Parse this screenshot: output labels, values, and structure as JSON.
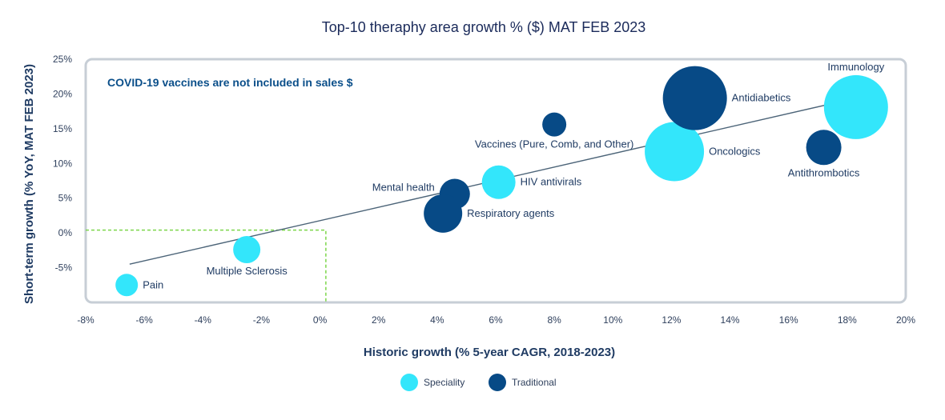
{
  "colors": {
    "speciality": "#33e6fb",
    "traditional": "#074a86",
    "frame": "#c7ced6",
    "trendline": "#4c6478",
    "highlight_box": "#7cd64b"
  },
  "chart_data": {
    "type": "scatter",
    "title": "Top-10 theraphy area growth % ($) MAT FEB 2023",
    "xlabel": "Historic growth (% 5-year CAGR, 2018-2023)",
    "ylabel": "Short-term growth (% YoY, MAT FEB 2023)",
    "annotation": "COVID-19 vaccines are not included in sales $",
    "xlim": [
      -8,
      20
    ],
    "ylim": [
      -10,
      25
    ],
    "x_ticks": [
      -8,
      -6,
      -4,
      -2,
      0,
      2,
      4,
      6,
      8,
      10,
      12,
      14,
      16,
      18,
      20
    ],
    "x_tick_labels": [
      "-8%",
      "-6%",
      "-4%",
      "-2%",
      "0%",
      "2%",
      "4%",
      "6%",
      "8%",
      "10%",
      "12%",
      "14%",
      "16%",
      "18%",
      "20%"
    ],
    "y_ticks": [
      -5,
      0,
      5,
      10,
      15,
      20,
      25
    ],
    "y_tick_labels": [
      "-5%",
      "0%",
      "5%",
      "10%",
      "15%",
      "20%",
      "25%"
    ],
    "grid": false,
    "legend_position": "bottom-center",
    "legend": [
      {
        "name": "Speciality",
        "key": "speciality"
      },
      {
        "name": "Traditional",
        "key": "traditional"
      }
    ],
    "trendline": {
      "x1": -6.5,
      "y1": -4.5,
      "x2": 18.3,
      "y2": 19.4
    },
    "highlight_box": {
      "x1": -8,
      "x2": 0.2,
      "y1": -10,
      "y2": 0.4
    },
    "points": [
      {
        "label": "Pain",
        "category": "speciality",
        "x": -6.6,
        "y": -7.5,
        "r": 14,
        "label_pos": "right"
      },
      {
        "label": "Multiple Sclerosis",
        "category": "speciality",
        "x": -2.5,
        "y": -2.4,
        "r": 17,
        "label_pos": "below"
      },
      {
        "label": "Mental health",
        "category": "traditional",
        "x": 4.6,
        "y": 5.6,
        "r": 19,
        "label_pos": "left"
      },
      {
        "label": "Respiratory agents",
        "category": "traditional",
        "x": 4.2,
        "y": 2.8,
        "r": 24,
        "label_pos": "right"
      },
      {
        "label": "HIV antivirals",
        "category": "speciality",
        "x": 6.1,
        "y": 7.3,
        "r": 21,
        "label_pos": "right"
      },
      {
        "label": "Vaccines (Pure, Comb, and Other)",
        "category": "traditional",
        "x": 8.0,
        "y": 15.6,
        "r": 15,
        "label_pos": "below"
      },
      {
        "label": "Oncologics",
        "category": "speciality",
        "x": 12.1,
        "y": 11.7,
        "r": 37,
        "label_pos": "right"
      },
      {
        "label": "Antidiabetics",
        "category": "traditional",
        "x": 12.8,
        "y": 19.4,
        "r": 40,
        "label_pos": "right"
      },
      {
        "label": "Antithrombotics",
        "category": "traditional",
        "x": 17.2,
        "y": 12.3,
        "r": 22,
        "label_pos": "below"
      },
      {
        "label": "Immunology",
        "category": "speciality",
        "x": 18.3,
        "y": 18.1,
        "r": 40,
        "label_pos": "above"
      }
    ]
  }
}
